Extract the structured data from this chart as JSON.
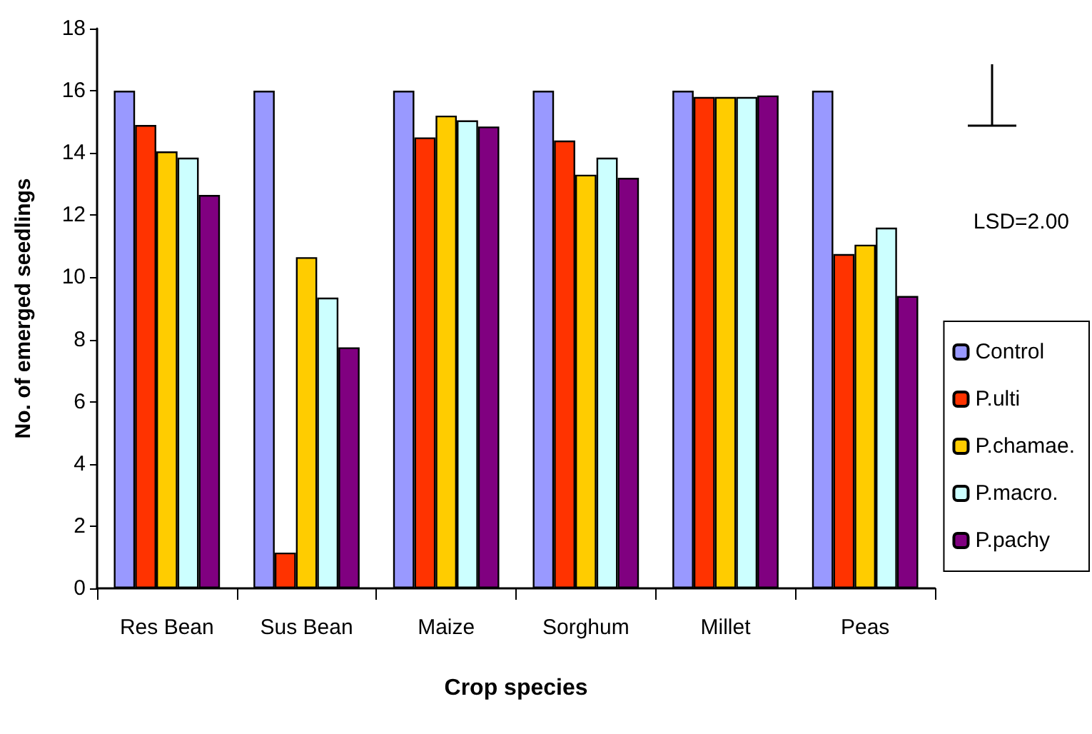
{
  "chart_data": {
    "type": "bar",
    "xlabel": "Crop species",
    "ylabel": "No. of emerged seedlings",
    "categories": [
      "Res Bean",
      "Sus Bean",
      "Maize",
      "Sorghum",
      "Millet",
      "Peas"
    ],
    "series": [
      {
        "name": "Control",
        "color": "#9999ff",
        "values": [
          16,
          16,
          16,
          16,
          16,
          16
        ]
      },
      {
        "name": "P.ulti",
        "color": "#ff3300",
        "values": [
          14.9,
          1.15,
          14.5,
          14.4,
          15.8,
          10.75
        ]
      },
      {
        "name": "P.chamae.",
        "color": "#ffcc00",
        "values": [
          14.05,
          10.65,
          15.2,
          13.3,
          15.8,
          11.05
        ]
      },
      {
        "name": "P.macro.",
        "color": "#ccffff",
        "values": [
          13.85,
          9.35,
          15.05,
          13.85,
          15.8,
          11.6
        ]
      },
      {
        "name": "P.pachy",
        "color": "#800080",
        "values": [
          12.65,
          7.75,
          14.85,
          13.2,
          15.85,
          9.4
        ]
      }
    ],
    "ylim": [
      0,
      18
    ],
    "yticks": [
      0,
      2,
      4,
      6,
      8,
      10,
      12,
      14,
      16,
      18
    ],
    "grid": false,
    "legend": "right",
    "annotations": [
      "LSD=2.00"
    ]
  }
}
